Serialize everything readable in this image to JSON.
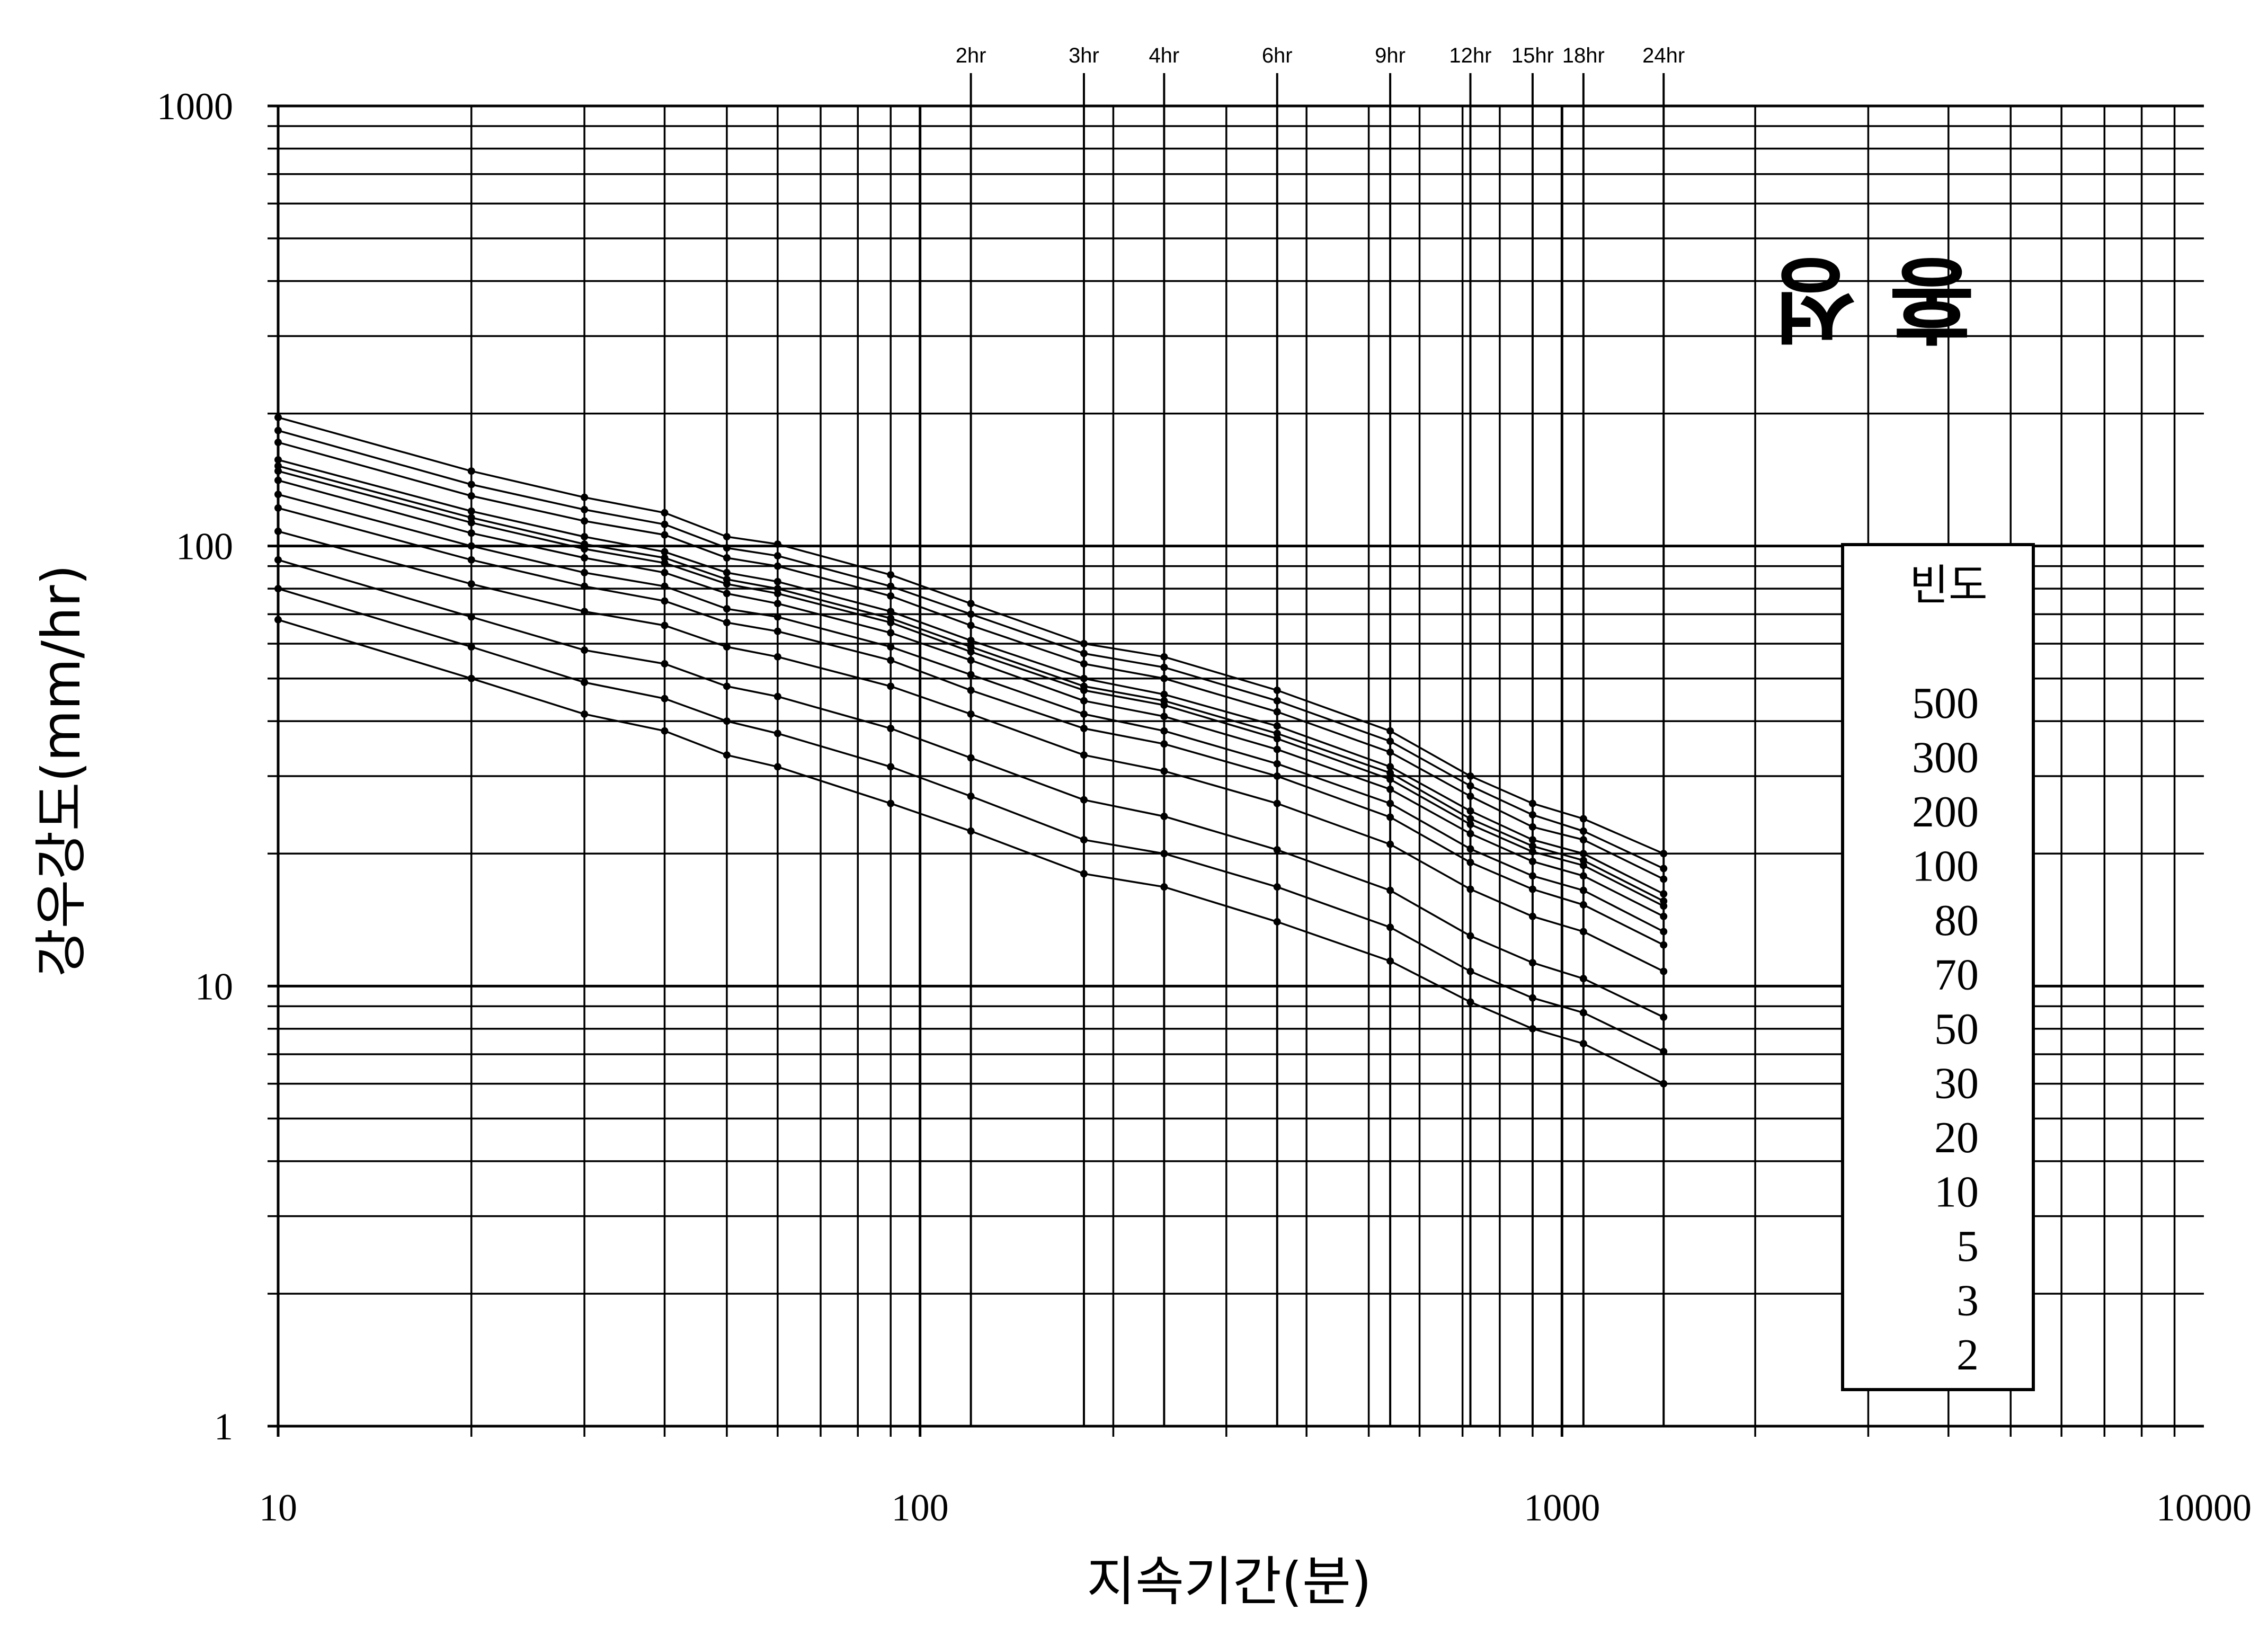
{
  "chart_data": {
    "type": "line",
    "title": "",
    "xlabel": "지속기간(분)",
    "ylabel": "강우강도(mm/hr)",
    "x_scale": "log",
    "y_scale": "log",
    "xlim": [
      10,
      10000
    ],
    "ylim": [
      1,
      1000
    ],
    "grid": true,
    "x_tick_labels": [
      {
        "value": 10,
        "label": "10"
      },
      {
        "value": 100,
        "label": "100"
      },
      {
        "value": 1000,
        "label": "1000"
      },
      {
        "value": 10000,
        "label": "10000"
      }
    ],
    "y_tick_labels": [
      {
        "value": 1,
        "label": "1"
      },
      {
        "value": 10,
        "label": "10"
      },
      {
        "value": 100,
        "label": "100"
      },
      {
        "value": 1000,
        "label": "1000"
      }
    ],
    "duration_labels": [
      {
        "value": 120,
        "label": "2hr"
      },
      {
        "value": 180,
        "label": "3hr"
      },
      {
        "value": 240,
        "label": "4hr"
      },
      {
        "value": 360,
        "label": "6hr"
      },
      {
        "value": 540,
        "label": "9hr"
      },
      {
        "value": 720,
        "label": "12hr"
      },
      {
        "value": 900,
        "label": "15hr"
      },
      {
        "value": 1080,
        "label": "18hr"
      },
      {
        "value": 1440,
        "label": "24hr"
      }
    ],
    "station_name": "홍 성",
    "legend": {
      "title": "빈도",
      "items": [
        "500",
        "300",
        "200",
        "100",
        "80",
        "70",
        "50",
        "30",
        "20",
        "10",
        "5",
        "3",
        "2"
      ],
      "placement": "right"
    },
    "x": [
      10,
      20,
      30,
      40,
      50,
      60,
      90,
      120,
      180,
      240,
      360,
      540,
      720,
      900,
      1080,
      1440
    ],
    "series": [
      {
        "name": "500",
        "values": [
          196,
          148,
          129,
          119,
          105,
          101,
          86,
          74,
          60,
          56,
          47,
          38,
          30,
          26,
          24,
          20
        ]
      },
      {
        "name": "300",
        "values": [
          183,
          138,
          121,
          112,
          99,
          95,
          81,
          70,
          57,
          53,
          44.5,
          36,
          28.5,
          24.5,
          22.5,
          18.5
        ]
      },
      {
        "name": "200",
        "values": [
          172,
          130,
          114,
          106,
          94,
          90,
          77,
          66,
          54,
          50,
          42,
          34,
          27,
          23,
          21.5,
          17.5
        ]
      },
      {
        "name": "100",
        "values": [
          157,
          120,
          105,
          97,
          87,
          83,
          71,
          61,
          50,
          46,
          39,
          31.5,
          25,
          21.5,
          20,
          16.2
        ]
      },
      {
        "name": "80",
        "values": [
          152,
          116,
          101,
          94,
          84,
          80,
          68.5,
          59,
          48,
          44.5,
          37.5,
          30.5,
          24,
          20.8,
          19.3,
          15.6
        ]
      },
      {
        "name": "70",
        "values": [
          148,
          113,
          98.5,
          91.5,
          82,
          78,
          67,
          57.5,
          47,
          43.5,
          36.5,
          29.5,
          23.3,
          20.2,
          18.8,
          15.2
        ]
      },
      {
        "name": "50",
        "values": [
          141,
          107,
          94,
          87,
          78,
          74,
          63.5,
          55,
          44.5,
          41,
          34.5,
          28,
          22.2,
          19.2,
          17.8,
          14.4
        ]
      },
      {
        "name": "30",
        "values": [
          131,
          100,
          87,
          81,
          72,
          69,
          59,
          51,
          41.5,
          38,
          32,
          26,
          20.5,
          17.8,
          16.5,
          13.3
        ]
      },
      {
        "name": "20",
        "values": [
          122,
          93,
          81,
          75,
          67,
          64,
          55,
          47,
          38.5,
          35.5,
          30,
          24.2,
          19.1,
          16.6,
          15.3,
          12.4
        ]
      },
      {
        "name": "10",
        "values": [
          108,
          82,
          71,
          66,
          59,
          56,
          48,
          41.5,
          33.5,
          30.8,
          26,
          21,
          16.6,
          14.4,
          13.3,
          10.8
        ]
      },
      {
        "name": "5",
        "values": [
          93,
          69,
          58,
          54,
          48,
          45.5,
          38.5,
          33,
          26.5,
          24.3,
          20.4,
          16.5,
          13,
          11.3,
          10.4,
          8.5
        ]
      },
      {
        "name": "3",
        "values": [
          80,
          59,
          49,
          45,
          40,
          37.5,
          31.5,
          27,
          21.5,
          20,
          16.8,
          13.6,
          10.8,
          9.4,
          8.7,
          7.1
        ]
      },
      {
        "name": "2",
        "values": [
          68,
          50,
          41.5,
          38,
          33.5,
          31.5,
          26,
          22.5,
          18,
          16.8,
          14,
          11.4,
          9.2,
          8,
          7.4,
          6
        ]
      }
    ]
  }
}
